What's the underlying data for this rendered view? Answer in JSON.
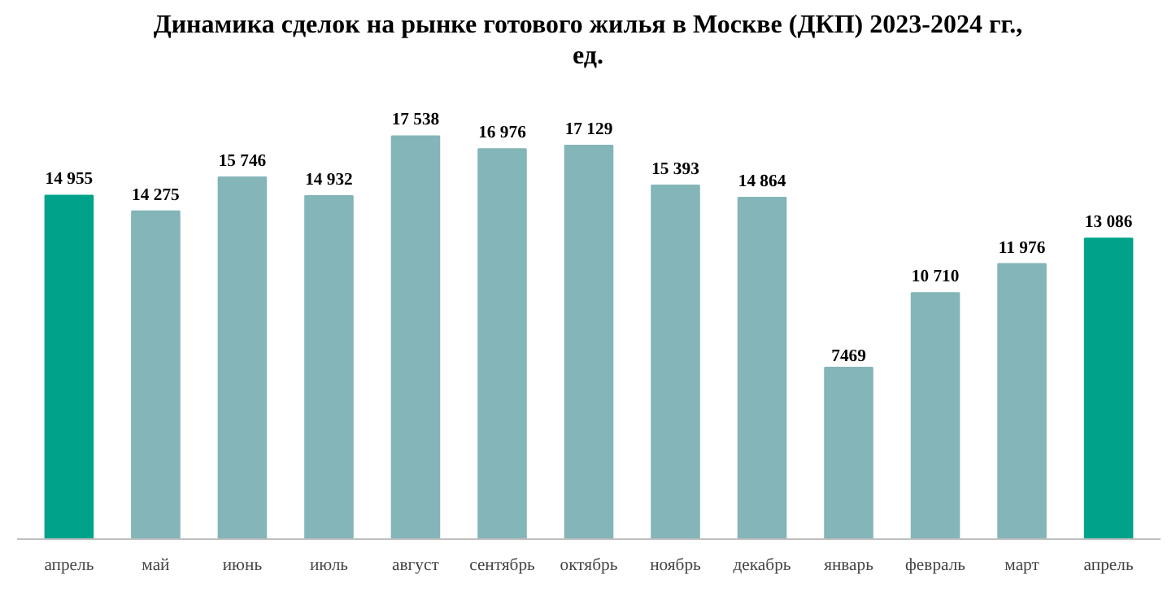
{
  "chart_data": {
    "type": "bar",
    "title": "Динамика сделок на рынке готового жилья в Москве (ДКП) 2023-2024 гг.,\nед.",
    "categories": [
      "апрель",
      "май",
      "июнь",
      "июль",
      "август",
      "сентябрь",
      "октябрь",
      "ноябрь",
      "декабрь",
      "январь",
      "февраль",
      "март",
      "апрель"
    ],
    "values": [
      14955,
      14275,
      15746,
      14932,
      17538,
      16976,
      17129,
      15393,
      14864,
      7469,
      10710,
      11976,
      13086
    ],
    "value_labels": [
      "14 955",
      "14 275",
      "15 746",
      "14 932",
      "17 538",
      "16 976",
      "17 129",
      "15 393",
      "14 864",
      "7469",
      "10 710",
      "11 976",
      "13 086"
    ],
    "colors": [
      "#00a389",
      "#84b5b9",
      "#84b5b9",
      "#84b5b9",
      "#84b5b9",
      "#84b5b9",
      "#84b5b9",
      "#84b5b9",
      "#84b5b9",
      "#84b5b9",
      "#84b5b9",
      "#84b5b9",
      "#00a389"
    ],
    "grid": false
  }
}
